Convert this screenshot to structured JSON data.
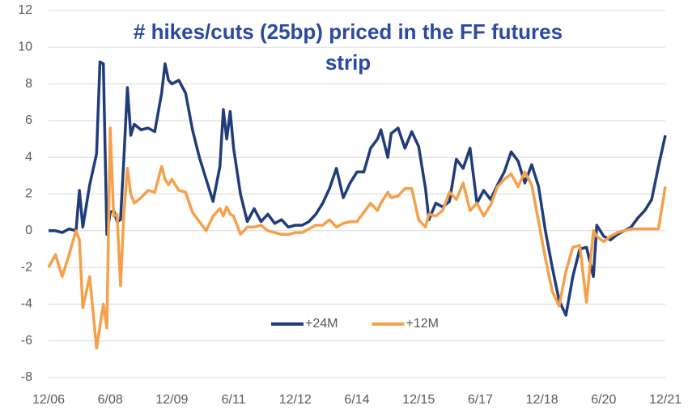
{
  "chart_data": {
    "type": "line",
    "title": "# hikes/cuts (25bp) priced in the FF futures strip",
    "x": [
      "2006-12",
      "2007-02",
      "2007-04",
      "2007-06",
      "2007-08",
      "2007-09",
      "2007-10",
      "2007-12",
      "2008-02",
      "2008-03",
      "2008-04",
      "2008-05",
      "2008-06",
      "2008-07",
      "2008-08",
      "2008-09",
      "2008-10",
      "2008-11",
      "2008-12",
      "2009-01",
      "2009-03",
      "2009-05",
      "2009-07",
      "2009-09",
      "2009-10",
      "2009-11",
      "2009-12",
      "2010-02",
      "2010-04",
      "2010-06",
      "2010-08",
      "2010-10",
      "2010-12",
      "2011-02",
      "2011-03",
      "2011-04",
      "2011-05",
      "2011-06",
      "2011-08",
      "2011-10",
      "2011-12",
      "2012-02",
      "2012-04",
      "2012-06",
      "2012-08",
      "2012-10",
      "2012-12",
      "2013-02",
      "2013-04",
      "2013-06",
      "2013-08",
      "2013-10",
      "2013-12",
      "2014-02",
      "2014-04",
      "2014-06",
      "2014-08",
      "2014-10",
      "2014-12",
      "2015-01",
      "2015-03",
      "2015-04",
      "2015-06",
      "2015-08",
      "2015-10",
      "2015-12",
      "2016-02",
      "2016-03",
      "2016-05",
      "2016-07",
      "2016-09",
      "2016-11",
      "2017-01",
      "2017-03",
      "2017-05",
      "2017-07",
      "2017-09",
      "2017-11",
      "2018-01",
      "2018-03",
      "2018-05",
      "2018-07",
      "2018-09",
      "2018-11",
      "2019-01",
      "2019-03",
      "2019-05",
      "2019-07",
      "2019-09",
      "2019-11",
      "2020-01",
      "2020-03",
      "2020-04",
      "2020-06",
      "2020-08",
      "2020-10",
      "2020-12",
      "2021-02",
      "2021-04",
      "2021-06",
      "2021-08",
      "2021-10",
      "2021-12"
    ],
    "series": [
      {
        "name": "+24M",
        "color": "#1f3d7a",
        "values": [
          0,
          0,
          -0.1,
          0.1,
          0,
          2.2,
          0.2,
          2.5,
          4.2,
          9.2,
          9.1,
          -0.2,
          1,
          1.1,
          0.5,
          0.6,
          4,
          7.8,
          5.2,
          5.8,
          5.5,
          5.6,
          5.4,
          7.5,
          9.1,
          8.2,
          8,
          8.2,
          7.5,
          5.5,
          4,
          2.8,
          1.6,
          3.5,
          6.6,
          5,
          6.5,
          4.5,
          2,
          0.5,
          1.2,
          0.5,
          0.9,
          0.4,
          0.6,
          0.2,
          0.3,
          0.3,
          0.5,
          0.9,
          1.5,
          2.3,
          3.4,
          1.8,
          2.6,
          3.2,
          3.2,
          4.5,
          5.0,
          5.5,
          4,
          5.3,
          5.6,
          4.5,
          5.4,
          4.6,
          2.3,
          0.6,
          1.5,
          1.3,
          1.6,
          3.9,
          3.4,
          4.5,
          1.5,
          2.2,
          1.7,
          2.5,
          3.2,
          4.3,
          3.8,
          2.6,
          3.6,
          2.4,
          0,
          -2,
          -3.8,
          -4.6,
          -2.5,
          -1,
          -0.9,
          -2.5,
          0.3,
          -0.3,
          -0.5,
          -0.2,
          0,
          0.2,
          0.7,
          1.1,
          1.7,
          3.5,
          5.2
        ]
      },
      {
        "name": "+12M",
        "color": "#f5a04a",
        "values": [
          -2,
          -1.3,
          -2.5,
          -1.3,
          0,
          -0.5,
          -4.2,
          -2.5,
          -6.4,
          -5.2,
          -4,
          -5.3,
          5.6,
          0.8,
          0.9,
          -3,
          1,
          3.4,
          2,
          1.5,
          1.8,
          2.2,
          2.1,
          3.5,
          2.8,
          2.5,
          2.8,
          2.2,
          2.1,
          1,
          0.5,
          0,
          0.8,
          1.2,
          0.8,
          1.3,
          0.9,
          0.8,
          -0.2,
          0.2,
          0.2,
          0.3,
          0,
          -0.1,
          -0.2,
          -0.2,
          -0.1,
          -0.1,
          0.1,
          0.3,
          0.3,
          0.6,
          0.2,
          0.4,
          0.5,
          0.5,
          1,
          1.5,
          1.1,
          1.5,
          2.1,
          1.8,
          1.9,
          2.3,
          2.3,
          0.6,
          0.2,
          0.9,
          0.8,
          1.1,
          2.1,
          1.7,
          2.6,
          1.1,
          1.5,
          0.8,
          1.4,
          2.4,
          2.8,
          3.1,
          2.4,
          3.2,
          2.5,
          0.5,
          -1.5,
          -3.3,
          -4.1,
          -2.2,
          -0.9,
          -0.8,
          -3.9,
          0,
          -0.3,
          -0.6,
          -0.3,
          -0.1,
          0,
          0.1,
          0.1,
          0.1,
          0.1,
          0.1,
          2.4
        ]
      }
    ],
    "xlim": [
      "2006-12",
      "2021-12"
    ],
    "xticks": [
      {
        "value": "2006-12",
        "label": "12/06"
      },
      {
        "value": "2008-06",
        "label": "6/08"
      },
      {
        "value": "2009-12",
        "label": "12/09"
      },
      {
        "value": "2011-06",
        "label": "6/11"
      },
      {
        "value": "2012-12",
        "label": "12/12"
      },
      {
        "value": "2014-06",
        "label": "6/14"
      },
      {
        "value": "2015-12",
        "label": "12/15"
      },
      {
        "value": "2017-06",
        "label": "6/17"
      },
      {
        "value": "2018-12",
        "label": "12/18"
      },
      {
        "value": "2020-06",
        "label": "6/20"
      },
      {
        "value": "2021-12",
        "label": "12/21"
      }
    ],
    "ylim": [
      -8,
      12
    ],
    "yticks": [
      -8,
      -6,
      -4,
      -2,
      0,
      2,
      4,
      6,
      8,
      10,
      12
    ],
    "grid": true,
    "legend": "center"
  }
}
